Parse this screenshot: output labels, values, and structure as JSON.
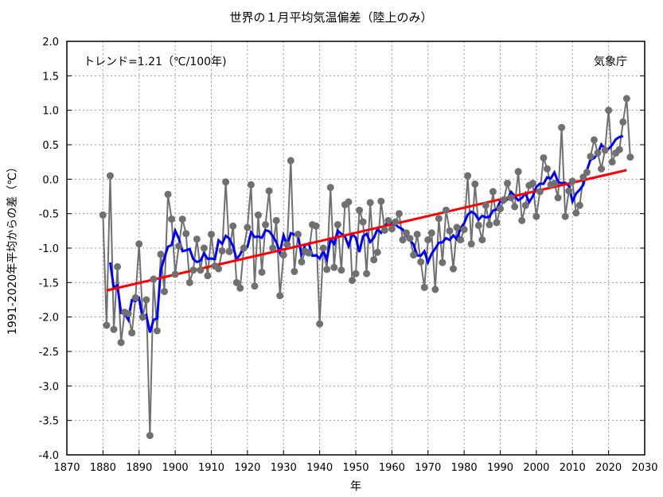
{
  "chart_data": {
    "type": "line",
    "title": "世界の１月平均気温偏差（陸上のみ）",
    "xlabel": "年",
    "ylabel": "1991-2020年平均からの差（℃）",
    "annotation_trend": "トレンド=1.21（℃/100年)",
    "annotation_source": "気象庁",
    "xlim": [
      1870,
      2030
    ],
    "ylim": [
      -4.0,
      2.0
    ],
    "xticks": [
      "1870",
      "1880",
      "1890",
      "1900",
      "1910",
      "1920",
      "1930",
      "1940",
      "1950",
      "1960",
      "1970",
      "1980",
      "1990",
      "2000",
      "2010",
      "2020",
      "2030"
    ],
    "yticks": [
      "2.0",
      "1.5",
      "1.0",
      "0.5",
      "0.0",
      "-0.5",
      "-1.0",
      "-1.5",
      "-2.0",
      "-2.5",
      "-3.0",
      "-3.5",
      "-4.0"
    ],
    "grid": true,
    "x_start": 1880,
    "series": [
      {
        "role": "annual",
        "color": "#707070",
        "values": [
          -0.52,
          -2.12,
          0.05,
          -2.18,
          -1.27,
          -2.37,
          -1.93,
          -1.95,
          -2.23,
          -1.72,
          -0.94,
          -2.0,
          -1.75,
          -3.72,
          -1.45,
          -2.2,
          -1.09,
          -1.63,
          -0.22,
          -0.58,
          -1.38,
          -0.97,
          -0.58,
          -0.79,
          -1.5,
          -1.32,
          -0.87,
          -1.32,
          -1.0,
          -1.4,
          -0.8,
          -1.26,
          -1.3,
          -1.04,
          -0.04,
          -1.05,
          -0.68,
          -1.5,
          -1.58,
          -1.0,
          -0.7,
          -0.08,
          -1.55,
          -0.52,
          -1.35,
          -0.66,
          -0.17,
          -1.0,
          -0.6,
          -1.69,
          -1.1,
          -0.95,
          0.27,
          -1.34,
          -0.8,
          -1.2,
          -1.05,
          -1.07,
          -0.66,
          -0.68,
          -2.1,
          -1.0,
          -1.31,
          -0.12,
          -1.28,
          -0.66,
          -1.32,
          -0.37,
          -0.33,
          -1.47,
          -1.37,
          -0.45,
          -0.62,
          -1.37,
          -0.34,
          -1.17,
          -1.06,
          -0.32,
          -0.74,
          -0.6,
          -0.72,
          -0.62,
          -0.5,
          -0.88,
          -0.78,
          -0.86,
          -1.1,
          -0.8,
          -1.2,
          -1.57,
          -0.88,
          -0.78,
          -1.6,
          -0.57,
          -1.21,
          -0.45,
          -0.75,
          -1.3,
          -0.7,
          -0.88,
          -0.73,
          0.05,
          -0.94,
          -0.07,
          -0.67,
          -0.88,
          -0.38,
          -0.66,
          -0.18,
          -0.63,
          -0.43,
          -0.3,
          -0.06,
          -0.27,
          -0.4,
          0.11,
          -0.6,
          -0.38,
          -0.09,
          -0.06,
          -0.54,
          -0.18,
          0.31,
          0.15,
          -0.08,
          -0.06,
          -0.27,
          0.75,
          -0.54,
          -0.17,
          -0.03,
          -0.49,
          -0.38,
          0.03,
          0.1,
          0.33,
          0.57,
          0.38,
          0.15,
          0.42,
          1.0,
          0.25,
          0.38,
          0.43,
          0.83,
          1.17,
          0.32
        ]
      },
      {
        "role": "5-year running mean",
        "color": "#0000ff"
      },
      {
        "role": "trend",
        "color": "#ff0000",
        "slope_per_100yr": 1.21
      }
    ]
  }
}
